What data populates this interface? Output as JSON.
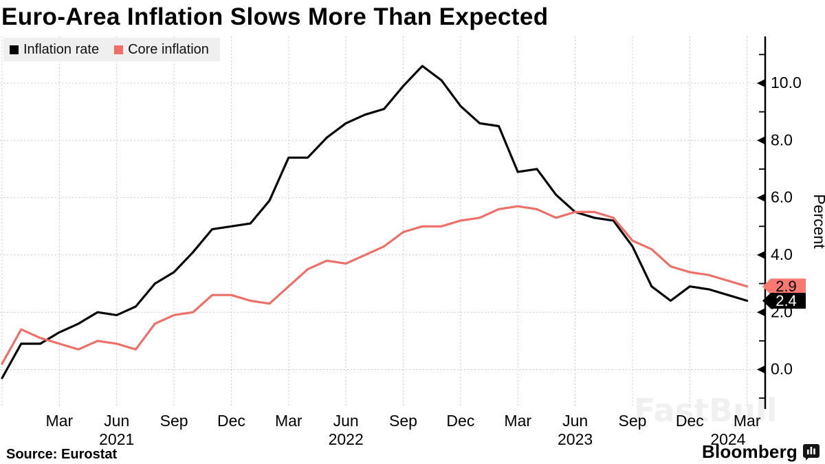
{
  "title": "Euro-Area Inflation Slows More Than Expected",
  "legend": {
    "items": [
      {
        "label": "Inflation rate",
        "color": "#000000"
      },
      {
        "label": "Core inflation",
        "color": "#ee6f67"
      }
    ]
  },
  "source_note": "Source: Eurostat",
  "brand": {
    "name": "Bloomberg",
    "icon": "bar-chart-bubble-icon"
  },
  "watermark": "FastBull",
  "y_axis": {
    "title": "Percent",
    "majors": [
      {
        "v": 0,
        "label": "0.0"
      },
      {
        "v": 2,
        "label": "2.0"
      },
      {
        "v": 4,
        "label": "4.0"
      },
      {
        "v": 6,
        "label": "6.0"
      },
      {
        "v": 8,
        "label": "8.0"
      },
      {
        "v": 10,
        "label": "10.0"
      }
    ],
    "minors": [
      -1,
      1,
      3,
      5,
      7,
      9,
      11
    ]
  },
  "x_axis": {
    "gridline_indices": [
      0,
      3,
      6,
      9,
      12,
      15,
      18,
      21,
      24,
      27,
      30,
      33,
      36,
      39
    ],
    "tick_labels": [
      {
        "i": 3,
        "label": "Mar"
      },
      {
        "i": 6,
        "label": "Jun"
      },
      {
        "i": 9,
        "label": "Sep"
      },
      {
        "i": 12,
        "label": "Dec"
      },
      {
        "i": 15,
        "label": "Mar"
      },
      {
        "i": 18,
        "label": "Jun"
      },
      {
        "i": 21,
        "label": "Sep"
      },
      {
        "i": 24,
        "label": "Dec"
      },
      {
        "i": 27,
        "label": "Mar"
      },
      {
        "i": 30,
        "label": "Jun"
      },
      {
        "i": 33,
        "label": "Sep"
      },
      {
        "i": 36,
        "label": "Dec"
      },
      {
        "i": 39,
        "label": "Mar"
      }
    ],
    "year_labels": [
      {
        "i": 6,
        "label": "2021"
      },
      {
        "i": 18,
        "label": "2022"
      },
      {
        "i": 30,
        "label": "2023"
      },
      {
        "i": 38,
        "label": "2024"
      }
    ]
  },
  "end_tags": [
    {
      "series": "Core inflation",
      "v": 2.9,
      "label": "2.9",
      "fill": "#f9786f",
      "text_color": "#000000"
    },
    {
      "series": "Inflation rate",
      "v": 2.4,
      "label": "2.4",
      "fill": "#000000",
      "text_color": "#ffffff"
    }
  ],
  "chart_data": {
    "type": "line",
    "title": "Euro-Area Inflation Slows More Than Expected",
    "ylabel": "Percent",
    "ylim": [
      -1.5,
      11.6
    ],
    "grid": true,
    "legend_position": "top-left",
    "x": [
      "Dec 2020",
      "Jan 2021",
      "Feb 2021",
      "Mar 2021",
      "Apr 2021",
      "May 2021",
      "Jun 2021",
      "Jul 2021",
      "Aug 2021",
      "Sep 2021",
      "Oct 2021",
      "Nov 2021",
      "Dec 2021",
      "Jan 2022",
      "Feb 2022",
      "Mar 2022",
      "Apr 2022",
      "May 2022",
      "Jun 2022",
      "Jul 2022",
      "Aug 2022",
      "Sep 2022",
      "Oct 2022",
      "Nov 2022",
      "Dec 2022",
      "Jan 2023",
      "Feb 2023",
      "Mar 2023",
      "Apr 2023",
      "May 2023",
      "Jun 2023",
      "Jul 2023",
      "Aug 2023",
      "Sep 2023",
      "Oct 2023",
      "Nov 2023",
      "Dec 2023",
      "Jan 2024",
      "Feb 2024",
      "Mar 2024"
    ],
    "series": [
      {
        "name": "Inflation rate",
        "color": "#000000",
        "values": [
          -0.3,
          0.9,
          0.9,
          1.3,
          1.6,
          2.0,
          1.9,
          2.2,
          3.0,
          3.4,
          4.1,
          4.9,
          5.0,
          5.1,
          5.9,
          7.4,
          7.4,
          8.1,
          8.6,
          8.9,
          9.1,
          9.9,
          10.6,
          10.1,
          9.2,
          8.6,
          8.5,
          6.9,
          7.0,
          6.1,
          5.5,
          5.3,
          5.2,
          4.3,
          2.9,
          2.4,
          2.9,
          2.8,
          2.6,
          2.4
        ]
      },
      {
        "name": "Core inflation",
        "color": "#ee6f67",
        "values": [
          0.2,
          1.4,
          1.1,
          0.9,
          0.7,
          1.0,
          0.9,
          0.7,
          1.6,
          1.9,
          2.0,
          2.6,
          2.6,
          2.4,
          2.3,
          2.9,
          3.5,
          3.8,
          3.7,
          4.0,
          4.3,
          4.8,
          5.0,
          5.0,
          5.2,
          5.3,
          5.6,
          5.7,
          5.6,
          5.3,
          5.5,
          5.5,
          5.3,
          4.5,
          4.2,
          3.6,
          3.4,
          3.3,
          3.1,
          2.9
        ]
      }
    ]
  }
}
